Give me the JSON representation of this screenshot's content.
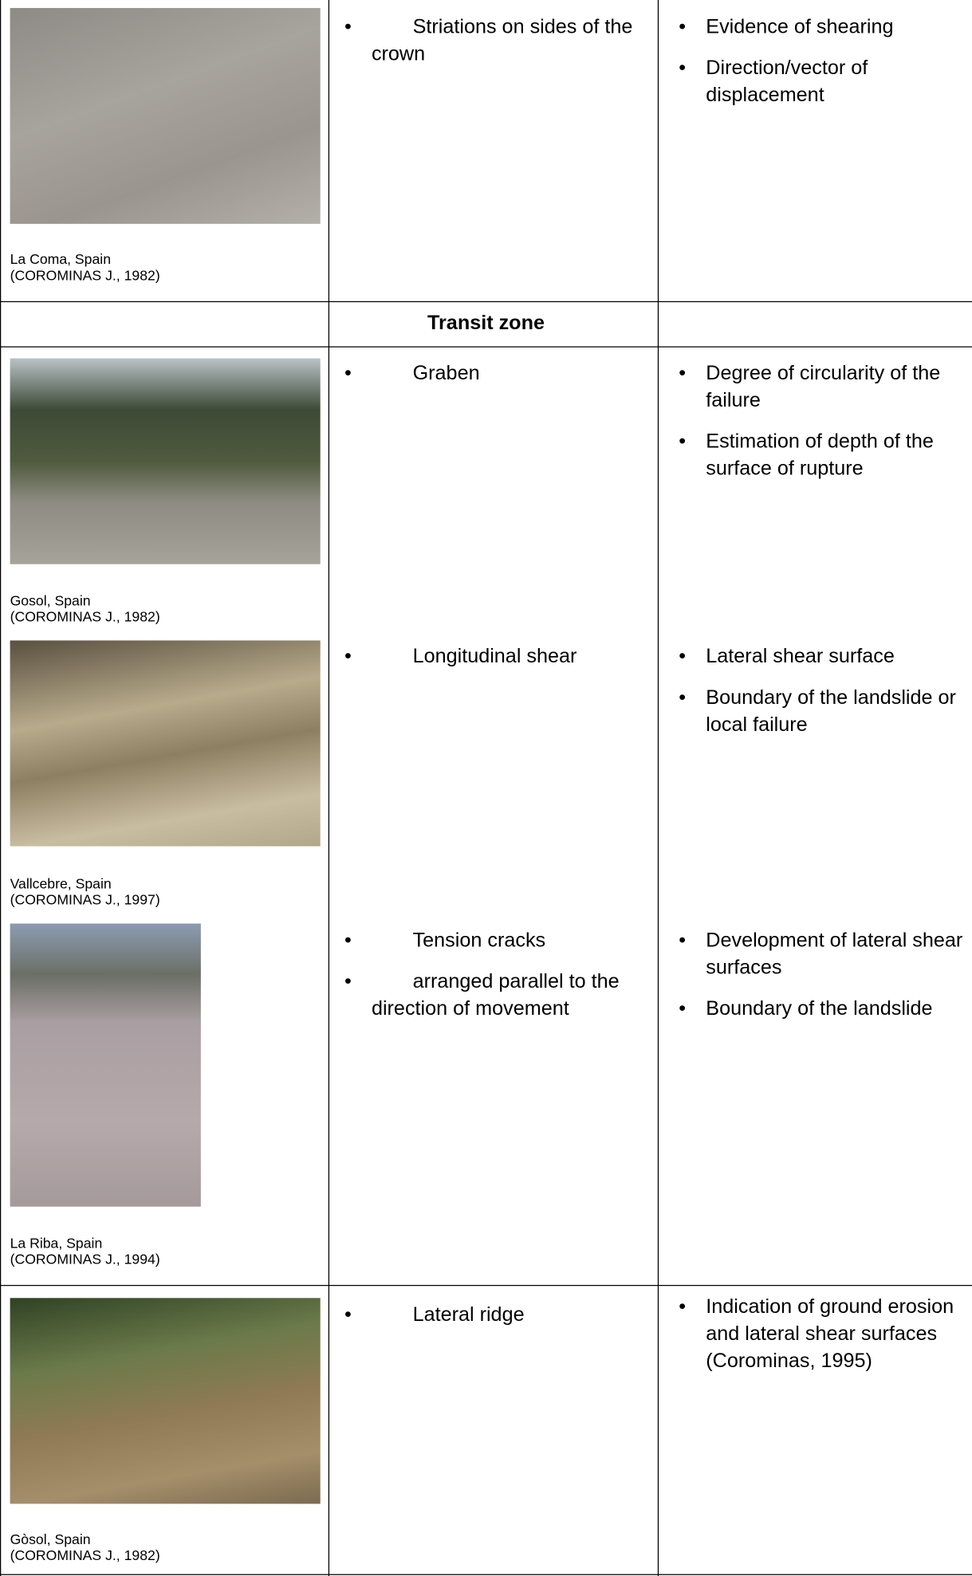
{
  "transit_header": "Transit zone",
  "rows": [
    {
      "caption_place": "La Coma, Spain",
      "caption_source": "(COROMINAS J., 1982)",
      "features": [
        "Striations on sides of the crown"
      ],
      "significance": [
        "Evidence of shearing",
        "Direction/vector of displacement"
      ]
    },
    {
      "caption_place": "Gosol, Spain",
      "caption_source": "(COROMINAS J., 1982)",
      "features": [
        "Graben"
      ],
      "significance": [
        "Degree of circularity of the failure",
        "Estimation of depth of the surface of rupture"
      ]
    },
    {
      "caption_place": "Vallcebre, Spain",
      "caption_source": "(COROMINAS J., 1997)",
      "features": [
        "Longitudinal shear"
      ],
      "significance": [
        "Lateral shear surface",
        "Boundary of the landslide or local failure"
      ]
    },
    {
      "caption_place": "La Riba, Spain",
      "caption_source": "(COROMINAS J., 1994)",
      "features": [
        "Tension cracks",
        "arranged parallel to the direction of movement"
      ],
      "significance": [
        "Development of lateral shear surfaces",
        "Boundary of the landslide"
      ]
    },
    {
      "caption_place": "Gòsol, Spain",
      "caption_source": "(COROMINAS J., 1982)",
      "features": [
        "Lateral ridge"
      ],
      "significance": [
        "Indication of ground erosion and lateral shear surfaces (Corominas, 1995)"
      ]
    }
  ]
}
